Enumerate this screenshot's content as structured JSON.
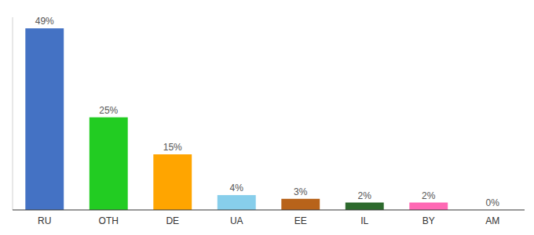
{
  "chart_data": {
    "type": "bar",
    "categories": [
      "RU",
      "OTH",
      "DE",
      "UA",
      "EE",
      "IL",
      "BY",
      "AM"
    ],
    "values": [
      49,
      25,
      15,
      4,
      3,
      2,
      2,
      0
    ],
    "value_labels": [
      "49%",
      "25%",
      "15%",
      "4%",
      "3%",
      "2%",
      "2%",
      "0%"
    ],
    "colors": [
      "#4472c4",
      "#22cc22",
      "#ffa500",
      "#87ceeb",
      "#b8631a",
      "#2d6a2d",
      "#ff69b4",
      "#cccccc"
    ],
    "ylim": [
      0,
      52
    ],
    "data_labels": true,
    "tick_labels": "x",
    "grid": false
  }
}
